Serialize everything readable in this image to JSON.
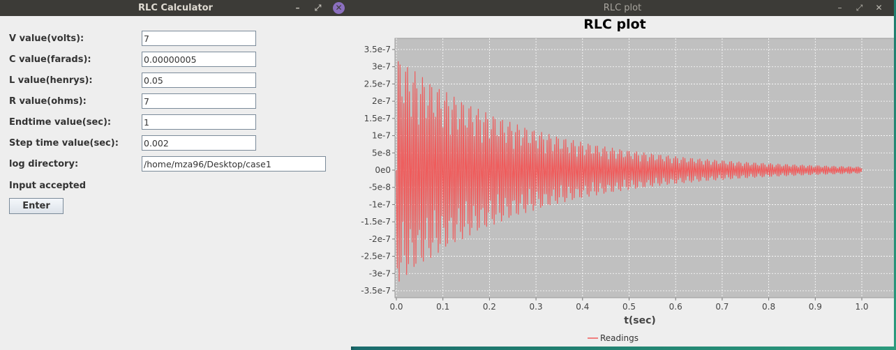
{
  "calculator": {
    "title": "RLC Calculator",
    "fields": [
      {
        "label": "V value(volts):",
        "value": "7"
      },
      {
        "label": "C value(farads):",
        "value": "0.00000005"
      },
      {
        "label": "L value(henrys):",
        "value": "0.05"
      },
      {
        "label": "R value(ohms):",
        "value": "7"
      },
      {
        "label": "Endtime value(sec):",
        "value": "1"
      },
      {
        "label": "Step time value(sec):",
        "value": "0.002"
      }
    ],
    "log": {
      "label": "log directory:",
      "value": "/home/mza96/Desktop/case1"
    },
    "status": "Input accepted",
    "enter_label": "Enter"
  },
  "plot_window": {
    "title": "RLC plot"
  },
  "window_controls": {
    "minimize": "–",
    "maximize": "⤢",
    "close": "✕"
  },
  "colors": {
    "titlebar": "#3c3b37",
    "plot_background": "#c0c0c0",
    "series_line": "#f05a5a",
    "close_button": "#8b6fbf"
  },
  "chart_data": {
    "type": "line",
    "title": "RLC plot",
    "xlabel": "t(sec)",
    "ylabel": "",
    "xlim": [
      0,
      1
    ],
    "ylim": [
      -3.6e-07,
      3.6e-07
    ],
    "x_ticks": [
      "0.0",
      "0.1",
      "0.2",
      "0.3",
      "0.4",
      "0.5",
      "0.6",
      "0.7",
      "0.8",
      "0.9",
      "1.0"
    ],
    "y_ticks": [
      "3.5e-7",
      "3e-7",
      "2.5e-7",
      "2e-7",
      "1.5e-7",
      "1e-7",
      "5e-8",
      "0e0",
      "-5e-8",
      "-1e-7",
      "-1.5e-7",
      "-2e-7",
      "-2.5e-7",
      "-3e-7",
      "-3.5e-7"
    ],
    "y_tick_values": [
      3.5e-07,
      3e-07,
      2.5e-07,
      2e-07,
      1.5e-07,
      1e-07,
      5e-08,
      0,
      -5e-08,
      -1e-07,
      -1.5e-07,
      -2e-07,
      -2.5e-07,
      -3e-07,
      -3.5e-07
    ],
    "grid": true,
    "legend_position": "bottom-center",
    "series": [
      {
        "name": "Readings",
        "x_start": 0,
        "x_step": 0.002,
        "x_end": 1.0,
        "description_of_values": "damped oscillation, envelope ~3.3e-7*exp(-3.5t), alternating sign each step",
        "envelope_peak": 3.3e-07,
        "decay_rate": 3.5
      }
    ]
  }
}
